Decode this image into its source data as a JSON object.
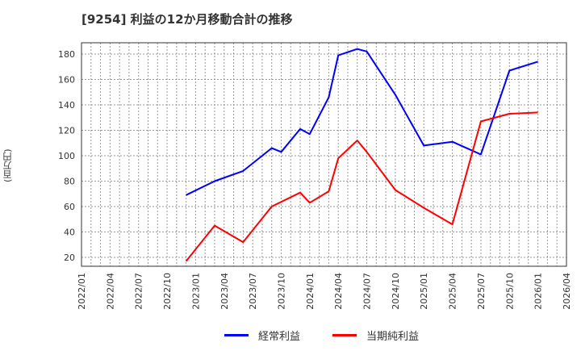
{
  "chart_data": {
    "type": "line",
    "title": "[9254]  利益の12か月移動合計の推移",
    "xlabel": "",
    "ylabel": "(百万円)",
    "ylim": [
      12,
      189
    ],
    "yticks": [
      20,
      40,
      60,
      80,
      100,
      120,
      140,
      160,
      180
    ],
    "xticks": [
      "2022/01",
      "2022/04",
      "2022/07",
      "2022/10",
      "2023/01",
      "2023/04",
      "2023/07",
      "2023/10",
      "2024/01",
      "2024/04",
      "2024/07",
      "2024/10",
      "2025/01",
      "2025/04",
      "2025/07",
      "2025/10",
      "2026/01",
      "2026/04"
    ],
    "grid": true,
    "legend_position": "bottom",
    "series": [
      {
        "name": "経常利益",
        "color": "#0000ff",
        "points": [
          {
            "x": "2022/12",
            "y": 69
          },
          {
            "x": "2023/03",
            "y": 80
          },
          {
            "x": "2023/06",
            "y": 88
          },
          {
            "x": "2023/09",
            "y": 106
          },
          {
            "x": "2023/10",
            "y": 103
          },
          {
            "x": "2023/12",
            "y": 121
          },
          {
            "x": "2024/01",
            "y": 117
          },
          {
            "x": "2024/03",
            "y": 146
          },
          {
            "x": "2024/04",
            "y": 179
          },
          {
            "x": "2024/06",
            "y": 184
          },
          {
            "x": "2024/07",
            "y": 182
          },
          {
            "x": "2024/10",
            "y": 148
          },
          {
            "x": "2025/01",
            "y": 108
          },
          {
            "x": "2025/04",
            "y": 111
          },
          {
            "x": "2025/07",
            "y": 101
          },
          {
            "x": "2025/10",
            "y": 167
          },
          {
            "x": "2026/01",
            "y": 174
          }
        ]
      },
      {
        "name": "当期純利益",
        "color": "#ff0000",
        "points": [
          {
            "x": "2022/12",
            "y": 17
          },
          {
            "x": "2023/03",
            "y": 45
          },
          {
            "x": "2023/06",
            "y": 32
          },
          {
            "x": "2023/09",
            "y": 60
          },
          {
            "x": "2023/12",
            "y": 71
          },
          {
            "x": "2024/01",
            "y": 63
          },
          {
            "x": "2024/03",
            "y": 72
          },
          {
            "x": "2024/04",
            "y": 98
          },
          {
            "x": "2024/06",
            "y": 112
          },
          {
            "x": "2024/07",
            "y": 103
          },
          {
            "x": "2024/10",
            "y": 73
          },
          {
            "x": "2025/01",
            "y": 59
          },
          {
            "x": "2025/04",
            "y": 46
          },
          {
            "x": "2025/07",
            "y": 127
          },
          {
            "x": "2025/10",
            "y": 133
          },
          {
            "x": "2026/01",
            "y": 134
          }
        ]
      }
    ]
  },
  "legend": {
    "items": [
      {
        "label": "経常利益",
        "color": "#0000ff"
      },
      {
        "label": "当期純利益",
        "color": "#ff0000"
      }
    ]
  }
}
